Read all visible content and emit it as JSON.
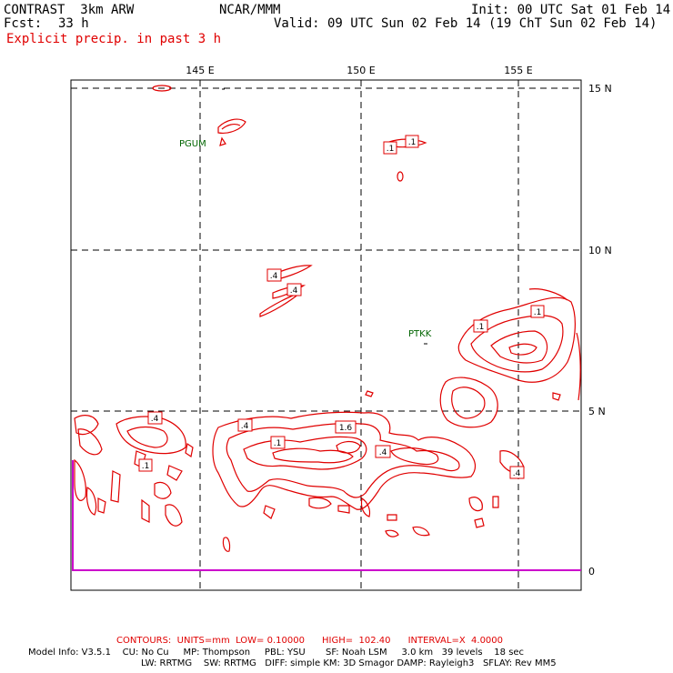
{
  "header": {
    "model": "CONTRAST  3km ARW",
    "center": "NCAR/MMM",
    "init": "Init: 00 UTC Sat 01 Feb 14",
    "fcst_label": "Fcst:",
    "fcst_value": "33 h",
    "valid": "Valid: 09 UTC Sun 02 Feb 14 (19 ChT Sun 02 Feb 14)",
    "field": "Explicit precip. in past 3 h"
  },
  "colors": {
    "contour": "#e00000",
    "station": "#006400",
    "boundary": "#cc00cc",
    "frame": "#000000"
  },
  "map": {
    "lon_labels": [
      "145 E",
      "150 E",
      "155 E"
    ],
    "lat_labels": [
      "15 N",
      "10 N",
      "5 N",
      "0"
    ],
    "stations": [
      "PGUM",
      "PTKK"
    ],
    "contour_labels": [
      ".1",
      ".1",
      ".4",
      ".4",
      ".1",
      ".1",
      ".4",
      ".4",
      ".1",
      "1.6",
      ".1",
      ".4",
      ".4"
    ]
  },
  "footer": {
    "contours": "CONTOURS:  UNITS=mm  LOW= 0.10000      HIGH=  102.40      INTERVAL=X  4.0000",
    "model_info_1": "Model Info: V3.5.1    CU: No Cu     MP: Thompson     PBL: YSU       SF: Noah LSM     3.0 km   39 levels    18 sec",
    "model_info_2": "LW: RRTMG    SW: RRTMG   DIFF: simple KM: 3D Smagor DAMP: Rayleigh3   SFLAY: Rev MM5"
  }
}
